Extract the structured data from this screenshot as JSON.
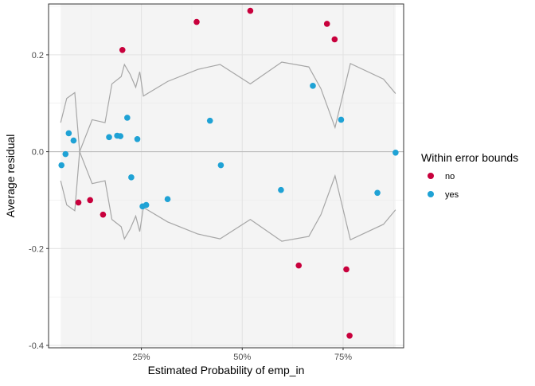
{
  "chart_data": {
    "type": "scatter",
    "xlabel": "Estimated Probability of emp_in",
    "ylabel": "Average residual",
    "xlim": [
      0.02,
      0.9
    ],
    "ylim": [
      -0.405,
      0.305
    ],
    "x_ticks": [
      0.25,
      0.5,
      0.75
    ],
    "x_tick_labels": [
      "25%",
      "50%",
      "75%"
    ],
    "y_ticks": [
      -0.4,
      -0.2,
      0.0,
      0.2
    ],
    "y_tick_labels": [
      "-0.4",
      "-0.2",
      "0.0",
      "0.2"
    ],
    "grid": true,
    "data_range_shading": [
      0.05,
      0.88
    ],
    "zero_line": 0,
    "legend": {
      "title": "Within error bounds",
      "placement": "right",
      "entries": [
        {
          "label": "no",
          "color": "#C8003C"
        },
        {
          "label": "yes",
          "color": "#1FA2D5"
        }
      ]
    },
    "series": [
      {
        "name": "no",
        "color": "#C8003C",
        "points": [
          [
            0.094,
            -0.105
          ],
          [
            0.123,
            -0.1
          ],
          [
            0.155,
            -0.13
          ],
          [
            0.203,
            0.21
          ],
          [
            0.387,
            0.268
          ],
          [
            0.52,
            0.291
          ],
          [
            0.64,
            -0.235
          ],
          [
            0.71,
            0.264
          ],
          [
            0.729,
            0.232
          ],
          [
            0.758,
            -0.243
          ],
          [
            0.766,
            -0.38
          ]
        ]
      },
      {
        "name": "yes",
        "color": "#1FA2D5",
        "points": [
          [
            0.052,
            -0.028
          ],
          [
            0.062,
            -0.005
          ],
          [
            0.07,
            0.038
          ],
          [
            0.082,
            0.023
          ],
          [
            0.17,
            0.03
          ],
          [
            0.19,
            0.033
          ],
          [
            0.198,
            0.032
          ],
          [
            0.215,
            0.07
          ],
          [
            0.225,
            -0.053
          ],
          [
            0.24,
            0.026
          ],
          [
            0.253,
            -0.113
          ],
          [
            0.262,
            -0.11
          ],
          [
            0.315,
            -0.098
          ],
          [
            0.42,
            0.064
          ],
          [
            0.447,
            -0.028
          ],
          [
            0.596,
            -0.079
          ],
          [
            0.675,
            0.136
          ],
          [
            0.745,
            0.066
          ],
          [
            0.835,
            -0.085
          ],
          [
            0.88,
            -0.002
          ]
        ]
      }
    ],
    "error_bounds": {
      "x": [
        0.05,
        0.065,
        0.085,
        0.097,
        0.128,
        0.16,
        0.177,
        0.2,
        0.208,
        0.222,
        0.236,
        0.246,
        0.255,
        0.315,
        0.39,
        0.445,
        0.52,
        0.598,
        0.665,
        0.695,
        0.73,
        0.768,
        0.85,
        0.88
      ],
      "upper": [
        0.06,
        0.11,
        0.122,
        0.0,
        0.066,
        0.06,
        0.14,
        0.155,
        0.18,
        0.16,
        0.133,
        0.165,
        0.115,
        0.145,
        0.17,
        0.18,
        0.14,
        0.185,
        0.175,
        0.13,
        0.05,
        0.182,
        0.15,
        0.12
      ]
    }
  }
}
